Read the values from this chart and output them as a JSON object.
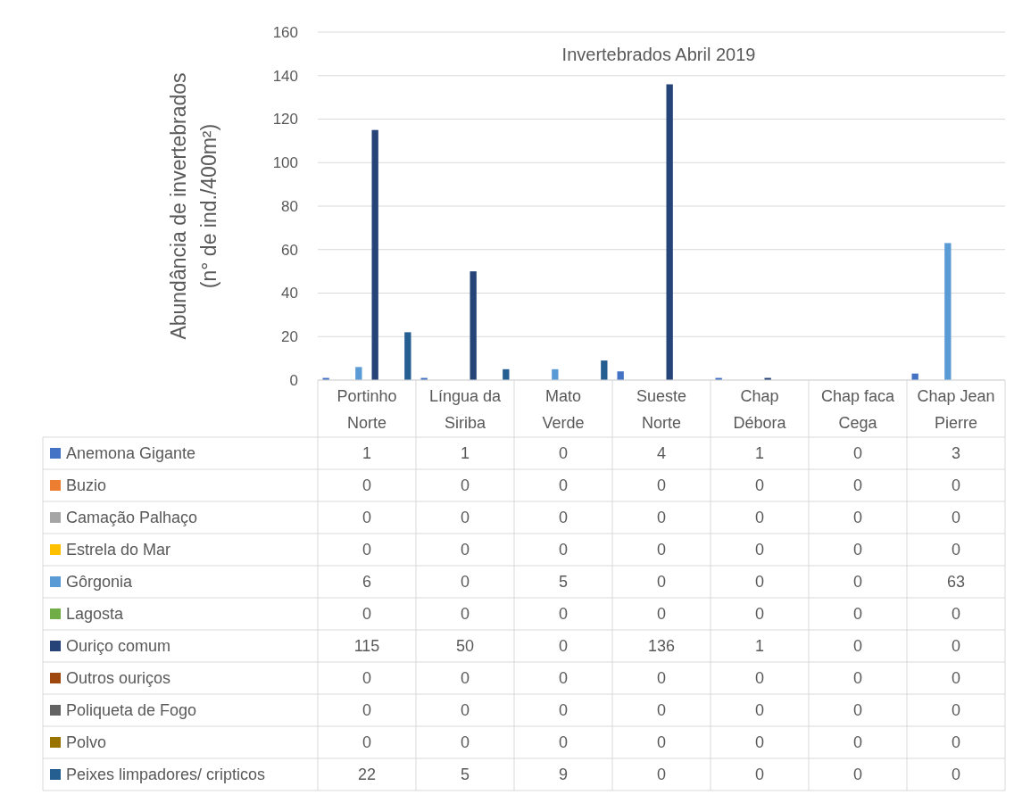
{
  "chart_data": {
    "type": "bar",
    "title": "Invertebrados Abril 2019",
    "ylabel": "Abundância de invertebrados\n(n° de ind./400m²)",
    "categories": [
      "Portinho Norte",
      "Língua da Siriba",
      "Mato Verde",
      "Sueste Norte",
      "Chap Débora",
      "Chap faca Cega",
      "Chap Jean Pierre"
    ],
    "series": [
      {
        "name": "Anemona Gigante",
        "color": "#4472c4",
        "values": [
          1,
          1,
          0,
          4,
          1,
          0,
          3
        ]
      },
      {
        "name": "Buzio",
        "color": "#ed7d31",
        "values": [
          0,
          0,
          0,
          0,
          0,
          0,
          0
        ]
      },
      {
        "name": "Camação Palhaço",
        "color": "#a5a5a5",
        "values": [
          0,
          0,
          0,
          0,
          0,
          0,
          0
        ]
      },
      {
        "name": "Estrela do Mar",
        "color": "#ffc000",
        "values": [
          0,
          0,
          0,
          0,
          0,
          0,
          0
        ]
      },
      {
        "name": "Gôrgonia",
        "color": "#5b9bd5",
        "values": [
          6,
          0,
          5,
          0,
          0,
          0,
          63
        ]
      },
      {
        "name": "Lagosta",
        "color": "#70ad47",
        "values": [
          0,
          0,
          0,
          0,
          0,
          0,
          0
        ]
      },
      {
        "name": "Ouriço comum",
        "color": "#264478",
        "values": [
          115,
          50,
          0,
          136,
          1,
          0,
          0
        ]
      },
      {
        "name": "Outros ouriços",
        "color": "#9e480e",
        "values": [
          0,
          0,
          0,
          0,
          0,
          0,
          0
        ]
      },
      {
        "name": "Poliqueta de Fogo",
        "color": "#636363",
        "values": [
          0,
          0,
          0,
          0,
          0,
          0,
          0
        ]
      },
      {
        "name": "Polvo",
        "color": "#997300",
        "values": [
          0,
          0,
          0,
          0,
          0,
          0,
          0
        ]
      },
      {
        "name": "Peixes limpadores/ cripticos",
        "color": "#255e91",
        "values": [
          22,
          5,
          9,
          0,
          0,
          0,
          0
        ]
      }
    ],
    "ylim": [
      0,
      160
    ],
    "yticks": [
      0,
      20,
      40,
      60,
      80,
      100,
      120,
      140,
      160
    ],
    "grid": "y",
    "legend": "bottom",
    "data_labels": true
  }
}
